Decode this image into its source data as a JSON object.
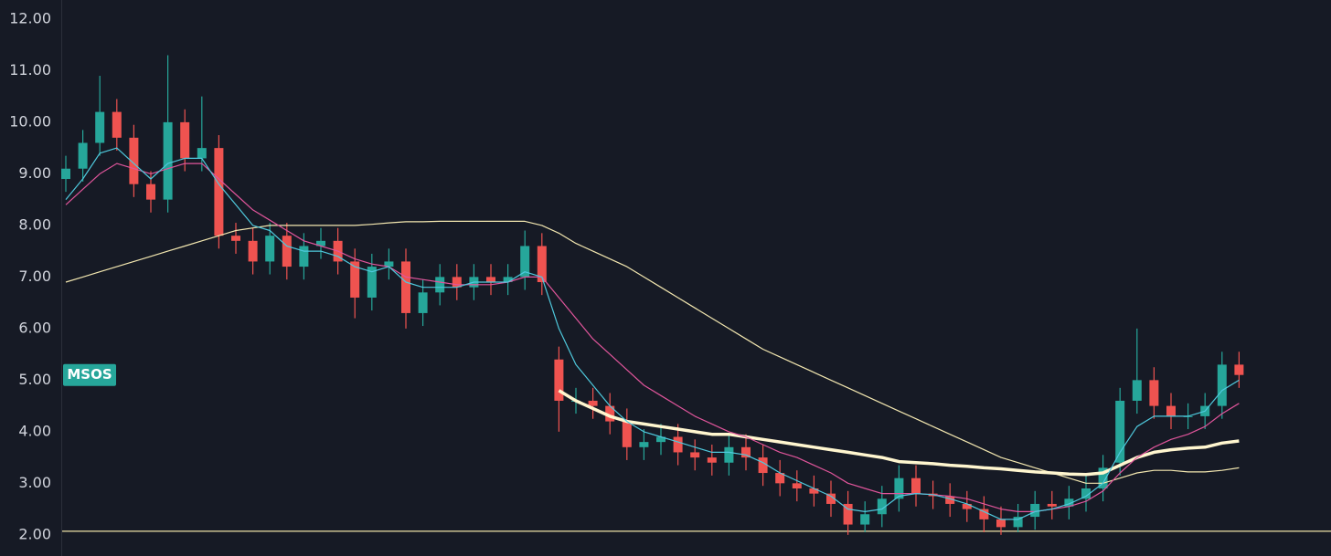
{
  "chart_data": {
    "type": "candlestick",
    "symbol": "MSOS",
    "ylim": [
      1.59,
      12.37
    ],
    "yticks": [
      {
        "value": 2,
        "label": "2.00"
      },
      {
        "value": 3,
        "label": "3.00"
      },
      {
        "value": 4,
        "label": "4.00"
      },
      {
        "value": 5,
        "label": "5.00"
      },
      {
        "value": 6,
        "label": "6.00"
      },
      {
        "value": 7,
        "label": "7.00"
      },
      {
        "value": 8,
        "label": "8.00"
      },
      {
        "value": 9,
        "label": "9.00"
      },
      {
        "value": 10,
        "label": "10.00"
      },
      {
        "value": 11,
        "label": "11.00"
      },
      {
        "value": 12,
        "label": "12.00"
      }
    ],
    "up_color": "#26a69a",
    "down_color": "#ef5350",
    "open": [
      8.9,
      9.1,
      9.6,
      10.2,
      9.7,
      8.8,
      8.5,
      10.0,
      9.3,
      9.5,
      7.8,
      7.7,
      7.3,
      7.8,
      7.2,
      7.6,
      7.7,
      7.3,
      6.6,
      7.2,
      7.3,
      6.3,
      6.7,
      7.0,
      6.8,
      7.0,
      6.9,
      7.0,
      7.6,
      5.4,
      4.6,
      4.6,
      4.5,
      4.2,
      3.7,
      3.8,
      3.9,
      3.6,
      3.5,
      3.4,
      3.7,
      3.5,
      3.2,
      3.0,
      2.9,
      2.8,
      2.6,
      2.2,
      2.4,
      2.7,
      3.1,
      2.8,
      2.75,
      2.6,
      2.5,
      2.3,
      2.15,
      2.35,
      2.6,
      2.55,
      2.7,
      2.9,
      3.4,
      4.6,
      5.0,
      4.5,
      4.3,
      4.3,
      4.5,
      5.3
    ],
    "high": [
      9.35,
      9.85,
      10.9,
      10.45,
      9.95,
      9.05,
      11.3,
      10.25,
      10.5,
      9.75,
      8.05,
      7.95,
      8.05,
      8.05,
      7.85,
      7.95,
      7.95,
      7.55,
      7.45,
      7.55,
      7.55,
      6.95,
      7.25,
      7.25,
      7.25,
      7.25,
      7.25,
      7.9,
      7.85,
      5.65,
      4.85,
      4.85,
      4.75,
      4.45,
      4.05,
      4.15,
      4.15,
      3.85,
      3.75,
      3.95,
      3.95,
      3.75,
      3.45,
      3.25,
      3.15,
      3.05,
      2.85,
      2.65,
      2.95,
      3.35,
      3.35,
      3.05,
      3.0,
      2.85,
      2.75,
      2.55,
      2.6,
      2.85,
      2.85,
      2.95,
      3.15,
      3.55,
      4.85,
      6.0,
      5.25,
      4.75,
      4.55,
      4.75,
      5.55,
      5.55
    ],
    "low": [
      8.65,
      8.85,
      9.35,
      9.45,
      8.55,
      8.25,
      8.25,
      9.05,
      9.05,
      7.55,
      7.45,
      7.05,
      7.05,
      6.95,
      6.95,
      7.35,
      7.05,
      6.2,
      6.35,
      6.95,
      6.0,
      6.05,
      6.45,
      6.55,
      6.55,
      6.65,
      6.65,
      6.75,
      6.65,
      4.0,
      4.35,
      4.25,
      3.95,
      3.45,
      3.45,
      3.55,
      3.35,
      3.25,
      3.15,
      3.15,
      3.25,
      2.95,
      2.75,
      2.65,
      2.55,
      2.35,
      2.0,
      2.05,
      2.15,
      2.45,
      2.55,
      2.5,
      2.35,
      2.25,
      2.05,
      2.0,
      2.05,
      2.1,
      2.3,
      2.3,
      2.45,
      2.65,
      3.15,
      4.35,
      4.25,
      4.05,
      4.05,
      4.05,
      4.25,
      4.85
    ],
    "close": [
      9.1,
      9.6,
      10.2,
      9.7,
      8.8,
      8.5,
      10.0,
      9.3,
      9.5,
      7.8,
      7.7,
      7.3,
      7.8,
      7.2,
      7.6,
      7.7,
      7.3,
      6.6,
      7.2,
      7.3,
      6.3,
      6.7,
      7.0,
      6.8,
      7.0,
      6.9,
      7.0,
      7.6,
      6.9,
      4.6,
      4.6,
      4.5,
      4.2,
      3.7,
      3.8,
      3.9,
      3.6,
      3.5,
      3.4,
      3.7,
      3.5,
      3.2,
      3.0,
      2.9,
      2.8,
      2.6,
      2.2,
      2.4,
      2.7,
      3.1,
      2.8,
      2.75,
      2.6,
      2.5,
      2.3,
      2.15,
      2.35,
      2.6,
      2.55,
      2.7,
      2.9,
      3.3,
      4.6,
      5.0,
      4.5,
      4.3,
      4.3,
      4.5,
      5.3,
      5.1
    ],
    "lines": [
      {
        "color": "#f3e7b0",
        "width": 1.2,
        "values": [
          6.9,
          7.0,
          7.1,
          7.2,
          7.3,
          7.4,
          7.5,
          7.6,
          7.7,
          7.8,
          7.9,
          7.95,
          8.0,
          8.0,
          8.0,
          8.0,
          8.0,
          8.0,
          8.02,
          8.05,
          8.07,
          8.07,
          8.08,
          8.08,
          8.08,
          8.08,
          8.08,
          8.08,
          8.0,
          7.85,
          7.65,
          7.5,
          7.35,
          7.2,
          7.0,
          6.8,
          6.6,
          6.4,
          6.2,
          6.0,
          5.8,
          5.6,
          5.45,
          5.3,
          5.15,
          5.0,
          4.85,
          4.7,
          4.55,
          4.4,
          4.25,
          4.1,
          3.95,
          3.8,
          3.65,
          3.5,
          3.4,
          3.3,
          3.2,
          3.1,
          3.0,
          3.0,
          3.1,
          3.2,
          3.25,
          3.25,
          3.22,
          3.22,
          3.25,
          3.3
        ]
      },
      {
        "color": "#fff6cf",
        "width": 3.5,
        "values": [
          null,
          null,
          null,
          null,
          null,
          null,
          null,
          null,
          null,
          null,
          null,
          null,
          null,
          null,
          null,
          null,
          null,
          null,
          null,
          null,
          null,
          null,
          null,
          null,
          null,
          null,
          null,
          null,
          null,
          4.8,
          4.6,
          4.45,
          4.3,
          4.2,
          4.15,
          4.1,
          4.05,
          4.0,
          3.95,
          3.95,
          3.9,
          3.85,
          3.8,
          3.75,
          3.7,
          3.65,
          3.6,
          3.55,
          3.5,
          3.42,
          3.4,
          3.38,
          3.35,
          3.33,
          3.3,
          3.28,
          3.25,
          3.22,
          3.2,
          3.18,
          3.17,
          3.2,
          3.35,
          3.5,
          3.6,
          3.65,
          3.68,
          3.7,
          3.78,
          3.82
        ]
      },
      {
        "color": "#e0559b",
        "width": 1.2,
        "values": [
          8.4,
          8.7,
          9.0,
          9.2,
          9.1,
          9.0,
          9.1,
          9.2,
          9.2,
          8.9,
          8.6,
          8.3,
          8.1,
          7.9,
          7.7,
          7.6,
          7.5,
          7.35,
          7.25,
          7.2,
          7.0,
          6.95,
          6.9,
          6.85,
          6.85,
          6.85,
          6.9,
          7.0,
          7.0,
          6.6,
          6.2,
          5.8,
          5.5,
          5.2,
          4.9,
          4.7,
          4.5,
          4.3,
          4.15,
          4.0,
          3.9,
          3.75,
          3.6,
          3.5,
          3.35,
          3.2,
          3.0,
          2.9,
          2.8,
          2.8,
          2.8,
          2.78,
          2.75,
          2.7,
          2.6,
          2.5,
          2.45,
          2.45,
          2.5,
          2.55,
          2.65,
          2.85,
          3.2,
          3.5,
          3.7,
          3.85,
          3.95,
          4.1,
          4.35,
          4.55
        ]
      },
      {
        "color": "#4fc9dd",
        "width": 1.2,
        "values": [
          8.5,
          8.9,
          9.4,
          9.5,
          9.2,
          8.9,
          9.2,
          9.3,
          9.3,
          8.8,
          8.4,
          8.0,
          7.9,
          7.6,
          7.5,
          7.5,
          7.4,
          7.2,
          7.1,
          7.2,
          6.9,
          6.8,
          6.8,
          6.8,
          6.9,
          6.9,
          6.9,
          7.1,
          7.0,
          6.0,
          5.3,
          4.9,
          4.5,
          4.2,
          4.0,
          3.9,
          3.8,
          3.7,
          3.6,
          3.6,
          3.55,
          3.4,
          3.2,
          3.05,
          2.9,
          2.75,
          2.5,
          2.45,
          2.5,
          2.75,
          2.8,
          2.78,
          2.7,
          2.6,
          2.45,
          2.3,
          2.3,
          2.45,
          2.5,
          2.6,
          2.75,
          3.0,
          3.6,
          4.1,
          4.3,
          4.3,
          4.3,
          4.4,
          4.8,
          5.0
        ]
      }
    ],
    "hline": {
      "value": 2.07,
      "color": "#efe3a6"
    }
  }
}
